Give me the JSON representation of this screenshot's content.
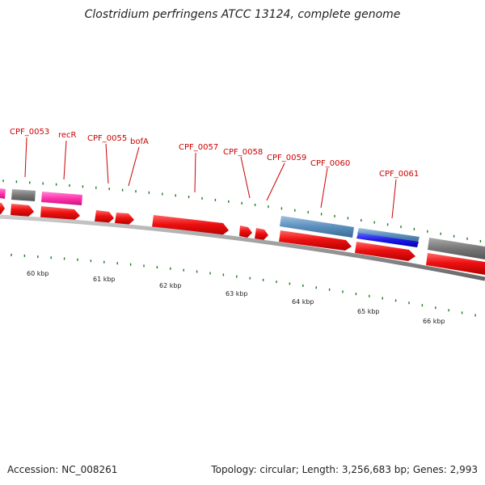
{
  "title": "Clostridium perfringens ATCC 13124, complete genome",
  "accession": "Accession: NC_008261",
  "summary": "Topology: circular; Length: 3,256,683 bp; Genes: 2,993",
  "colors": {
    "forward_cds": "#ee1111",
    "trna": "#ff44bb",
    "hypothetical": "#777777",
    "steelblue": "#5a8fbd",
    "blue": "#1a1ae6",
    "tick": "#1a7a1a",
    "label": "#cc0000",
    "backbone": "#888888"
  },
  "gene_labels": [
    {
      "name": "CPF_0053"
    },
    {
      "name": "recR"
    },
    {
      "name": "CPF_0055"
    },
    {
      "name": "bofA"
    },
    {
      "name": "CPF_0057"
    },
    {
      "name": "CPF_0058"
    },
    {
      "name": "CPF_0059"
    },
    {
      "name": "CPF_0060"
    },
    {
      "name": "CPF_0061"
    }
  ],
  "kbp_labels": [
    "60 kbp",
    "61 kbp",
    "62 kbp",
    "63 kbp",
    "64 kbp",
    "65 kbp",
    "66 kbp"
  ]
}
